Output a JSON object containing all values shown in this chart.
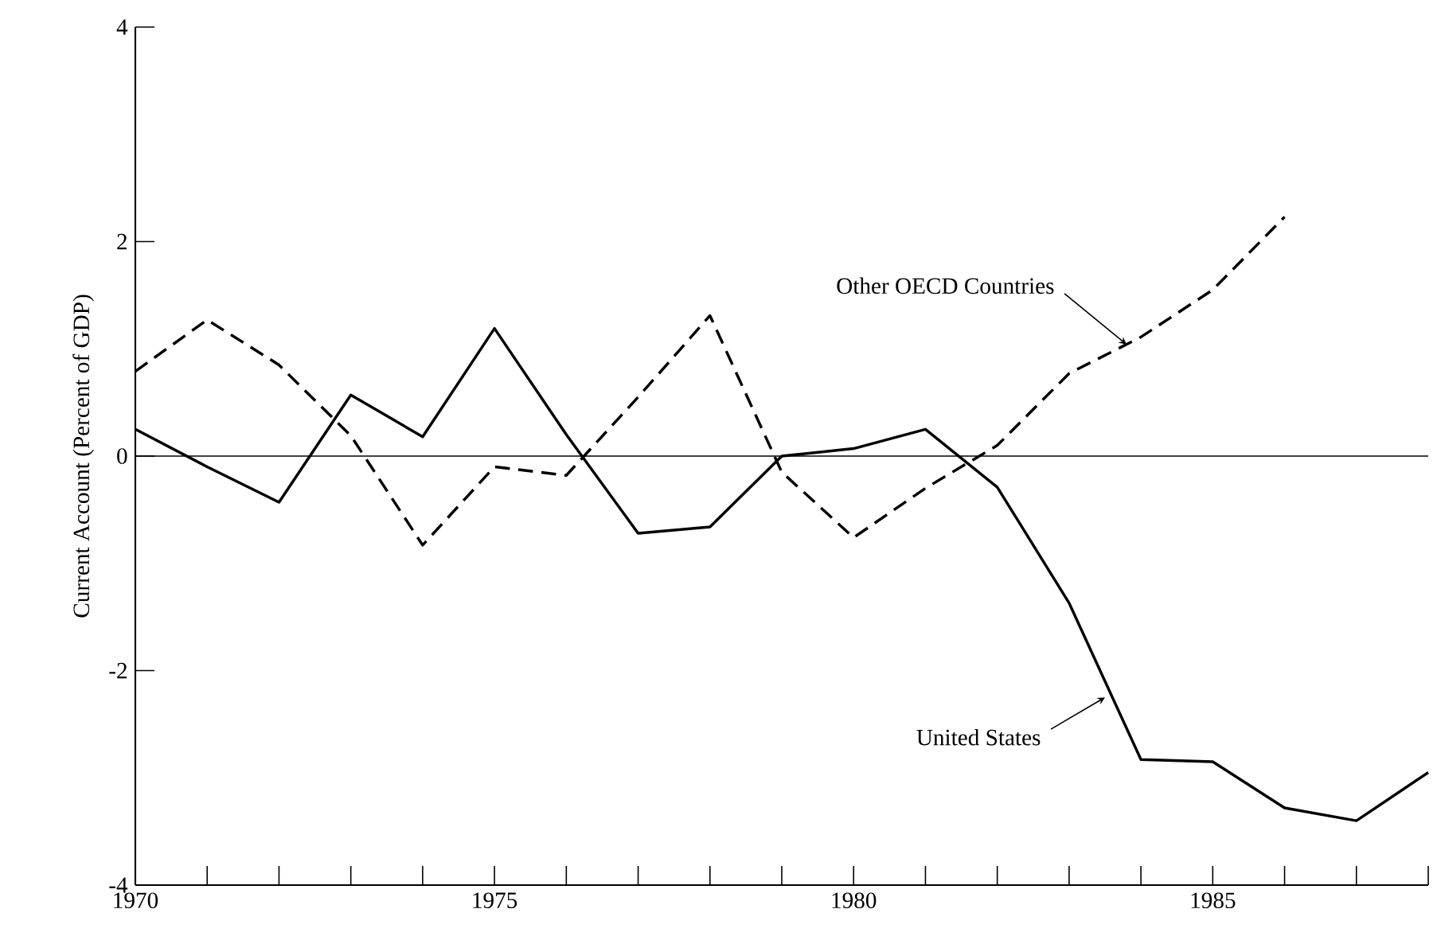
{
  "chart_data": {
    "type": "line",
    "ylabel": "Current Account (Percent of GDP)",
    "x": [
      1970,
      1971,
      1972,
      1973,
      1974,
      1975,
      1976,
      1977,
      1978,
      1979,
      1980,
      1981,
      1982,
      1983,
      1984,
      1985,
      1986,
      1987,
      1988
    ],
    "series": [
      {
        "color": "#000000",
        "line_style": "solid",
        "values": [
          0.25,
          -0.1,
          -0.43,
          0.57,
          0.18,
          1.19,
          0.2,
          -0.72,
          -0.66,
          0.0,
          0.07,
          0.25,
          -0.29,
          -1.37,
          -2.83,
          -2.85,
          -3.28,
          -3.4,
          -2.95
        ]
      },
      {
        "color": "#000000",
        "line_style": "dashed",
        "values": [
          0.79,
          1.27,
          0.85,
          0.19,
          -0.83,
          -0.1,
          -0.18,
          0.55,
          1.31,
          -0.15,
          -0.76,
          -0.3,
          0.1,
          0.77,
          1.11,
          1.55,
          2.23,
          null,
          null
        ]
      }
    ],
    "xlim": [
      1970,
      1988
    ],
    "ylim": [
      -4,
      4
    ],
    "xticks": [
      1970,
      {
        "value": 1971,
        "label": null
      },
      {
        "value": 1972,
        "label": null
      },
      {
        "value": 1973,
        "label": null
      },
      {
        "value": 1974,
        "label": null
      },
      1975,
      {
        "value": 1976,
        "label": null
      },
      {
        "value": 1977,
        "label": null
      },
      {
        "value": 1978,
        "label": null
      },
      {
        "value": 1979,
        "label": null
      },
      1980,
      {
        "value": 1981,
        "label": null
      },
      {
        "value": 1982,
        "label": null
      },
      {
        "value": 1983,
        "label": null
      },
      {
        "value": 1984,
        "label": null
      },
      1985,
      {
        "value": 1986,
        "label": null
      },
      {
        "value": 1987,
        "label": null
      },
      {
        "value": 1988,
        "label": null
      }
    ],
    "yticks": [
      -4,
      -2,
      0,
      2,
      4
    ],
    "ref_lines": [
      {
        "axis": "y",
        "value": 0,
        "color": "#000000"
      }
    ],
    "annotations": [
      {
        "text": "Other OECD Countries",
        "x": 1983.8,
        "y": 1.04
      },
      {
        "text": "United States",
        "x": 1983.5,
        "y": -2.25
      }
    ],
    "grid": false,
    "marker": "none"
  }
}
